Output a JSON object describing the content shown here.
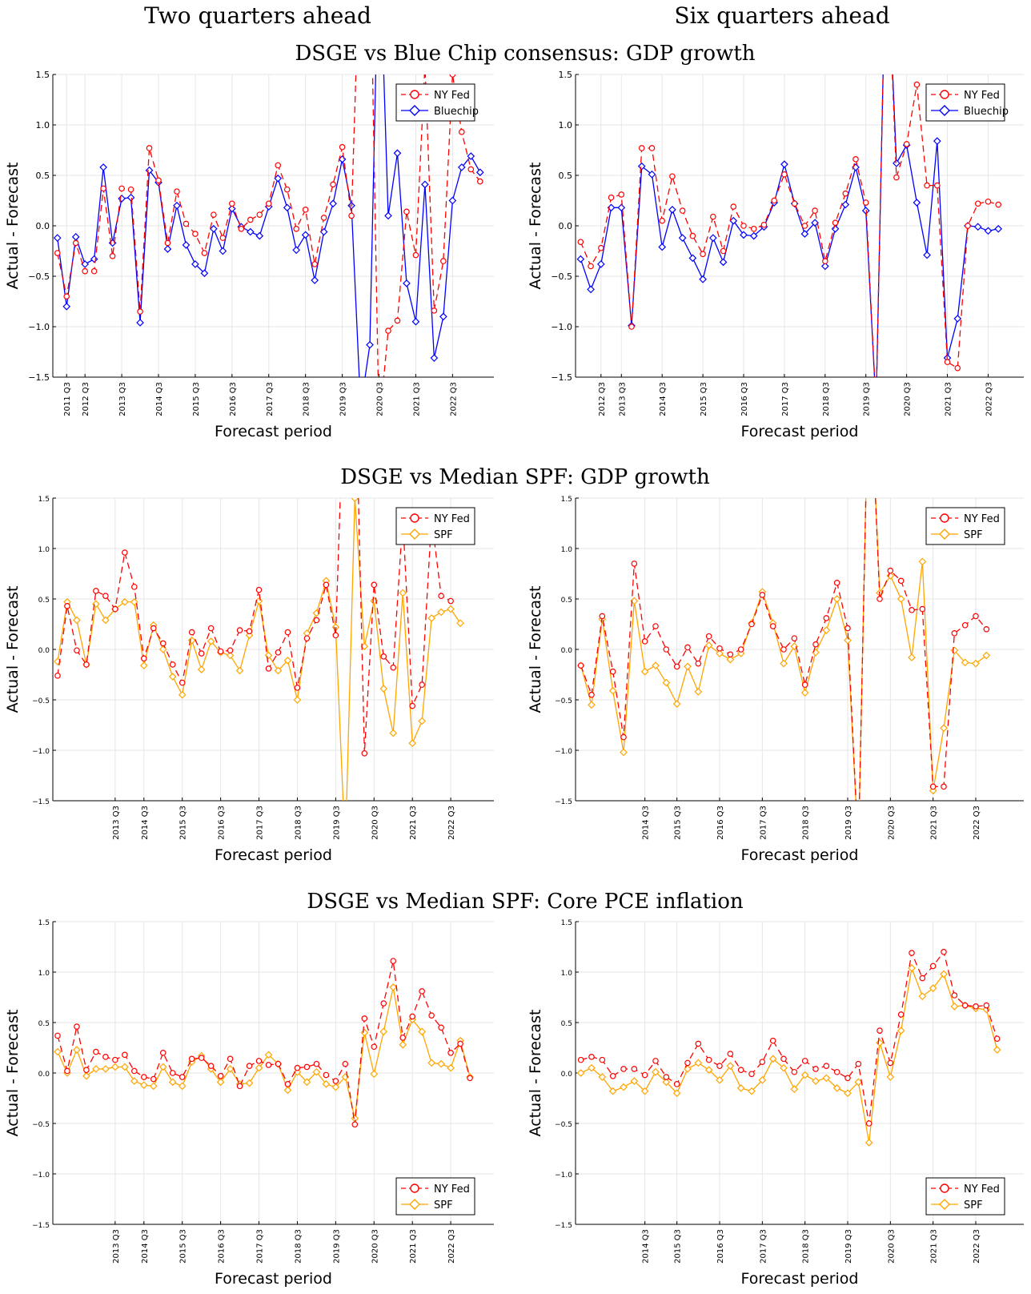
{
  "column_titles": [
    "Two quarters ahead",
    "Six quarters ahead"
  ],
  "row_titles": [
    "DSGE vs Blue Chip consensus: GDP growth",
    "DSGE vs Median SPF: GDP growth",
    "DSGE vs Median SPF: Core PCE inflation"
  ],
  "colors": {
    "nyfed": "#ff0000",
    "bluechip": "#0000ff",
    "spf": "#ffa500",
    "grid": "#e6e6e6"
  },
  "chart_data": [
    {
      "type": "line",
      "title": "DSGE vs Blue Chip consensus: GDP growth",
      "column_title": "Two quarters ahead",
      "xlabel": "Forecast period",
      "ylabel": "Actual - Forecast",
      "ylim": [
        -1.5,
        1.5
      ],
      "yticks": [
        "1.5",
        "1.0",
        "0.5",
        "0.0",
        "−0.5",
        "−1.0",
        "−1.5"
      ],
      "xtick_labels": [
        "2011 Q3",
        "2012 Q3",
        "2013 Q3",
        "2014 Q3",
        "2015 Q3",
        "2016 Q3",
        "2017 Q3",
        "2018 Q3",
        "2019 Q3",
        "2020 Q3",
        "2021 Q3",
        "2022 Q3"
      ],
      "xtick_index": [
        1,
        3,
        7,
        11,
        15,
        19,
        23,
        27,
        31,
        35,
        39,
        43
      ],
      "x_count": 48,
      "legend_position": "top-right",
      "grid": true,
      "series": [
        {
          "name": "NY Fed",
          "style": "dashed-circle",
          "values": [
            -0.27,
            -0.7,
            -0.17,
            -0.45,
            -0.45,
            0.37,
            -0.3,
            0.37,
            0.36,
            -0.85,
            0.77,
            0.45,
            -0.17,
            0.34,
            0.02,
            -0.08,
            -0.27,
            0.11,
            -0.12,
            0.22,
            -0.03,
            0.06,
            0.11,
            0.22,
            0.6,
            0.36,
            -0.03,
            0.16,
            -0.38,
            0.08,
            0.41,
            0.78,
            0.1,
            3.0,
            3.0,
            -2.0,
            -1.04,
            -0.94,
            0.14,
            -0.29,
            1.6,
            -0.84,
            -0.35,
            1.5,
            0.93,
            0.56,
            0.44
          ]
        },
        {
          "name": "Bluechip",
          "style": "solid-diamond",
          "values": [
            -0.12,
            -0.8,
            -0.11,
            -0.38,
            -0.33,
            0.58,
            -0.17,
            0.27,
            0.28,
            -0.96,
            0.55,
            0.43,
            -0.23,
            0.2,
            -0.19,
            -0.38,
            -0.47,
            -0.03,
            -0.25,
            0.17,
            -0.01,
            -0.06,
            -0.1,
            0.19,
            0.47,
            0.18,
            -0.24,
            -0.09,
            -0.54,
            -0.06,
            0.22,
            0.66,
            0.2,
            -1.8,
            -1.18,
            3.0,
            0.1,
            0.72,
            -0.57,
            -0.95,
            0.41,
            -1.31,
            -0.9,
            0.25,
            0.58,
            0.69,
            0.53
          ]
        }
      ]
    },
    {
      "type": "line",
      "title": "DSGE vs Blue Chip consensus: GDP growth",
      "column_title": "Six quarters ahead",
      "xlabel": "Forecast period",
      "ylabel": "Actual - Forecast",
      "ylim": [
        -1.5,
        1.5
      ],
      "yticks": [
        "1.5",
        "1.0",
        "0.5",
        "0.0",
        "−0.5",
        "−1.0",
        "−1.5"
      ],
      "xtick_labels": [
        "2012 Q3",
        "2013 Q3",
        "2014 Q3",
        "2015 Q3",
        "2016 Q3",
        "2017 Q3",
        "2018 Q3",
        "2019 Q3",
        "2020 Q3",
        "2021 Q3",
        "2022 Q3"
      ],
      "xtick_index": [
        2,
        4,
        8,
        12,
        16,
        20,
        24,
        28,
        32,
        36,
        40
      ],
      "x_count": 44,
      "legend_position": "top-right",
      "grid": true,
      "series": [
        {
          "name": "NY Fed",
          "style": "dashed-circle",
          "values": [
            -0.16,
            -0.4,
            -0.22,
            0.28,
            0.31,
            -1.0,
            0.77,
            0.77,
            0.05,
            0.49,
            0.15,
            -0.1,
            -0.28,
            0.09,
            -0.25,
            0.19,
            0.0,
            -0.03,
            0.01,
            0.25,
            0.51,
            0.22,
            0.0,
            0.15,
            -0.35,
            0.03,
            0.32,
            0.66,
            0.23,
            -1.8,
            3.0,
            0.48,
            0.81,
            1.4,
            0.4,
            0.4,
            -1.35,
            -1.41,
            0.0,
            0.22,
            0.24,
            0.21
          ]
        },
        {
          "name": "Bluechip",
          "style": "solid-diamond",
          "values": [
            -0.33,
            -0.63,
            -0.38,
            0.18,
            0.18,
            -0.99,
            0.59,
            0.51,
            -0.21,
            0.16,
            -0.12,
            -0.32,
            -0.53,
            -0.12,
            -0.36,
            0.05,
            -0.09,
            -0.1,
            -0.01,
            0.23,
            0.61,
            0.22,
            -0.08,
            0.03,
            -0.4,
            -0.03,
            0.21,
            0.58,
            0.15,
            -1.8,
            3.0,
            0.62,
            0.8,
            0.23,
            -0.29,
            0.84,
            -1.31,
            -0.92,
            0.0,
            -0.01,
            -0.05,
            -0.03
          ]
        }
      ]
    },
    {
      "type": "line",
      "title": "DSGE vs Median SPF: GDP growth",
      "column_title": "Two quarters ahead",
      "xlabel": "Forecast period",
      "ylabel": "Actual - Forecast",
      "ylim": [
        -1.5,
        1.5
      ],
      "yticks": [
        "1.5",
        "1.0",
        "0.5",
        "0.0",
        "−0.5",
        "−1.0",
        "−1.5"
      ],
      "xtick_labels": [
        "2013 Q3",
        "2014 Q3",
        "2015 Q3",
        "2016 Q3",
        "2017 Q3",
        "2018 Q3",
        "2019 Q3",
        "2020 Q3",
        "2021 Q3",
        "2022 Q3"
      ],
      "xtick_index": [
        6,
        9,
        13,
        17,
        21,
        25,
        29,
        33,
        37,
        41
      ],
      "x_count": 46,
      "legend_position": "top-right",
      "grid": true,
      "series": [
        {
          "name": "NY Fed",
          "style": "dashed-circle",
          "values": [
            -0.26,
            0.43,
            -0.01,
            -0.15,
            0.58,
            0.53,
            0.4,
            0.96,
            0.62,
            -0.09,
            0.21,
            0.06,
            -0.15,
            -0.33,
            0.17,
            -0.04,
            0.21,
            -0.02,
            -0.01,
            0.19,
            0.18,
            0.59,
            -0.19,
            -0.03,
            0.17,
            -0.38,
            0.11,
            0.29,
            0.64,
            0.14,
            3.0,
            3.0,
            -1.03,
            0.64,
            -0.07,
            -0.18,
            1.3,
            -0.56,
            -0.35,
            1.3,
            0.53,
            0.48
          ]
        },
        {
          "name": "SPF",
          "style": "solid-diamond",
          "values": [
            -0.12,
            0.47,
            0.29,
            -0.15,
            0.45,
            0.29,
            0.4,
            0.47,
            0.47,
            -0.16,
            0.24,
            0.0,
            -0.27,
            -0.45,
            0.09,
            -0.2,
            0.08,
            -0.03,
            -0.06,
            -0.21,
            0.14,
            0.48,
            -0.06,
            -0.21,
            -0.11,
            -0.5,
            0.16,
            0.36,
            0.68,
            0.22,
            -2.0,
            1.5,
            0.03,
            0.48,
            -0.39,
            -0.83,
            0.56,
            -0.93,
            -0.71,
            0.31,
            0.37,
            0.4,
            0.26
          ]
        }
      ]
    },
    {
      "type": "line",
      "title": "DSGE vs Median SPF: GDP growth",
      "column_title": "Six quarters ahead",
      "xlabel": "Forecast period",
      "ylabel": "Actual - Forecast",
      "ylim": [
        -1.5,
        1.5
      ],
      "yticks": [
        "1.5",
        "1.0",
        "0.5",
        "0.0",
        "−0.5",
        "−1.0",
        "−1.5"
      ],
      "xtick_labels": [
        "2014 Q3",
        "2015 Q3",
        "2016 Q3",
        "2017 Q3",
        "2018 Q3",
        "2019 Q3",
        "2020 Q3",
        "2021 Q3",
        "2022 Q3"
      ],
      "xtick_index": [
        6,
        9,
        13,
        17,
        21,
        25,
        29,
        33,
        37
      ],
      "x_count": 42,
      "legend_position": "top-right",
      "grid": true,
      "series": [
        {
          "name": "NY Fed",
          "style": "dashed-circle",
          "values": [
            -0.16,
            -0.45,
            0.33,
            -0.22,
            -0.87,
            0.85,
            0.08,
            0.23,
            0.0,
            -0.17,
            0.02,
            -0.14,
            0.13,
            0.01,
            -0.05,
            0.0,
            0.25,
            0.54,
            0.23,
            0.0,
            0.11,
            -0.35,
            0.05,
            0.31,
            0.66,
            0.21,
            -2.0,
            3.0,
            0.5,
            0.78,
            0.68,
            0.39,
            0.4,
            -1.36,
            -1.36,
            0.16,
            0.24,
            0.33,
            0.2
          ]
        },
        {
          "name": "SPF",
          "style": "solid-diamond",
          "values": [
            -0.16,
            -0.55,
            0.3,
            -0.41,
            -1.02,
            0.48,
            -0.22,
            -0.16,
            -0.33,
            -0.54,
            -0.17,
            -0.42,
            0.04,
            -0.04,
            -0.1,
            -0.04,
            0.26,
            0.57,
            0.26,
            -0.14,
            0.03,
            -0.43,
            -0.03,
            0.19,
            0.5,
            0.09,
            -2.0,
            3.0,
            0.56,
            0.73,
            0.5,
            -0.08,
            0.87,
            -1.4,
            -0.78,
            -0.01,
            -0.13,
            -0.14,
            -0.06
          ]
        }
      ]
    },
    {
      "type": "line",
      "title": "DSGE vs Median SPF: Core PCE inflation",
      "column_title": "Two quarters ahead",
      "xlabel": "Forecast period",
      "ylabel": "Actual - Forecast",
      "ylim": [
        -1.5,
        1.5
      ],
      "yticks": [
        "1.5",
        "1.0",
        "0.5",
        "0.0",
        "−0.5",
        "−1.0",
        "−1.5"
      ],
      "xtick_labels": [
        "2013 Q3",
        "2014 Q3",
        "2015 Q3",
        "2016 Q3",
        "2017 Q3",
        "2018 Q3",
        "2019 Q3",
        "2020 Q3",
        "2021 Q3",
        "2022 Q3"
      ],
      "xtick_index": [
        6,
        9,
        13,
        17,
        21,
        25,
        29,
        33,
        37,
        41
      ],
      "x_count": 46,
      "legend_position": "bottom-right",
      "grid": true,
      "series": [
        {
          "name": "NY Fed",
          "style": "dashed-circle",
          "values": [
            0.37,
            0.02,
            0.46,
            0.03,
            0.21,
            0.16,
            0.13,
            0.18,
            0.02,
            -0.04,
            -0.06,
            0.2,
            0.0,
            -0.04,
            0.14,
            0.15,
            0.07,
            -0.03,
            0.14,
            -0.13,
            0.07,
            0.12,
            0.08,
            0.09,
            -0.11,
            0.05,
            0.06,
            0.09,
            -0.02,
            -0.08,
            0.09,
            -0.51,
            0.54,
            0.26,
            0.69,
            1.11,
            0.35,
            0.56,
            0.81,
            0.57,
            0.45,
            0.2,
            0.29,
            -0.05
          ]
        },
        {
          "name": "SPF",
          "style": "solid-diamond",
          "values": [
            0.21,
            0.0,
            0.23,
            -0.03,
            0.04,
            0.04,
            0.06,
            0.06,
            -0.08,
            -0.12,
            -0.13,
            0.06,
            -0.09,
            -0.13,
            0.11,
            0.17,
            0.04,
            -0.09,
            0.04,
            -0.11,
            -0.1,
            0.05,
            0.18,
            0.09,
            -0.17,
            0.01,
            -0.09,
            0.01,
            -0.11,
            -0.14,
            -0.04,
            -0.45,
            0.4,
            -0.01,
            0.41,
            0.85,
            0.28,
            0.53,
            0.41,
            0.1,
            0.09,
            0.05,
            0.32,
            -0.04
          ]
        }
      ]
    },
    {
      "type": "line",
      "title": "DSGE vs Median SPF: Core PCE inflation",
      "column_title": "Six quarters ahead",
      "xlabel": "Forecast period",
      "ylabel": "Actual - Forecast",
      "ylim": [
        -1.5,
        1.5
      ],
      "yticks": [
        "1.5",
        "1.0",
        "0.5",
        "0.0",
        "−0.5",
        "−1.0",
        "−1.5"
      ],
      "xtick_labels": [
        "2014 Q3",
        "2015 Q3",
        "2016 Q3",
        "2017 Q3",
        "2018 Q3",
        "2019 Q3",
        "2020 Q3",
        "2021 Q3",
        "2022 Q3"
      ],
      "xtick_index": [
        6,
        9,
        13,
        17,
        21,
        25,
        29,
        33,
        37
      ],
      "x_count": 42,
      "legend_position": "bottom-right",
      "grid": true,
      "series": [
        {
          "name": "NY Fed",
          "style": "dashed-circle",
          "values": [
            0.13,
            0.16,
            0.13,
            -0.03,
            0.04,
            0.04,
            -0.02,
            0.12,
            -0.04,
            -0.11,
            0.1,
            0.29,
            0.13,
            0.07,
            0.19,
            0.03,
            -0.01,
            0.11,
            0.32,
            0.14,
            0.01,
            0.12,
            0.04,
            0.07,
            0.01,
            -0.05,
            0.09,
            -0.5,
            0.42,
            0.1,
            0.58,
            1.19,
            0.94,
            1.06,
            1.2,
            0.77,
            0.67,
            0.66,
            0.67,
            0.34
          ]
        },
        {
          "name": "SPF",
          "style": "solid-diamond",
          "values": [
            0.0,
            0.05,
            -0.04,
            -0.18,
            -0.14,
            -0.08,
            -0.18,
            0.01,
            -0.09,
            -0.2,
            0.04,
            0.1,
            0.03,
            -0.07,
            0.07,
            -0.15,
            -0.18,
            -0.07,
            0.14,
            0.05,
            -0.16,
            -0.02,
            -0.08,
            -0.05,
            -0.15,
            -0.2,
            -0.09,
            -0.69,
            0.3,
            -0.04,
            0.42,
            1.04,
            0.76,
            0.84,
            0.98,
            0.66,
            0.67,
            0.64,
            0.63,
            0.23
          ]
        }
      ]
    }
  ]
}
